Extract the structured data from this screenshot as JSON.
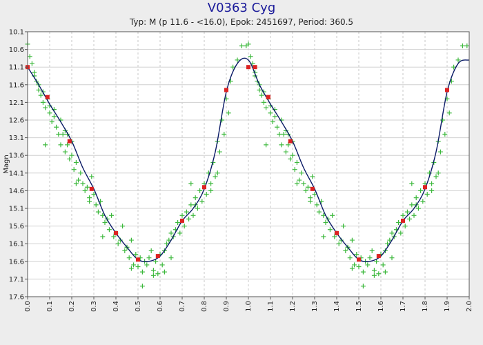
{
  "chart_data": {
    "type": "scatter",
    "title": "V0363 Cyg",
    "subtitle": "Typ: M (p 11.6 - <16.0), Epok: 2451697, Period: 360.5",
    "xlabel": "",
    "ylabel": "Magn",
    "xlim": [
      0.0,
      2.0
    ],
    "ylim": [
      10.1,
      17.6
    ],
    "y_inverted": true,
    "grid": true,
    "x_ticks": [
      "0.0",
      "0.1",
      "0.2",
      "0.3",
      "0.4",
      "0.5",
      "0.6",
      "0.7",
      "0.8",
      "0.9",
      "1.0",
      "1.1",
      "1.2",
      "1.3",
      "1.4",
      "1.5",
      "1.6",
      "1.7",
      "1.8",
      "1.9",
      "2.0"
    ],
    "y_ticks": [
      "10.1",
      "10.6",
      "11.1",
      "11.6",
      "12.1",
      "12.6",
      "13.1",
      "13.6",
      "14.1",
      "14.6",
      "15.1",
      "15.6",
      "16.1",
      "16.6",
      "17.1",
      "17.6"
    ],
    "series": [
      {
        "name": "observations",
        "marker": "plus",
        "color": "#3cb83c",
        "x": [
          0.0,
          0.01,
          0.02,
          0.03,
          0.03,
          0.04,
          0.05,
          0.05,
          0.06,
          0.07,
          0.07,
          0.08,
          0.09,
          0.1,
          0.1,
          0.11,
          0.12,
          0.12,
          0.13,
          0.14,
          0.15,
          0.15,
          0.16,
          0.17,
          0.17,
          0.18,
          0.19,
          0.2,
          0.2,
          0.21,
          0.22,
          0.23,
          0.24,
          0.25,
          0.26,
          0.27,
          0.28,
          0.29,
          0.3,
          0.31,
          0.32,
          0.33,
          0.34,
          0.35,
          0.36,
          0.37,
          0.38,
          0.39,
          0.4,
          0.41,
          0.42,
          0.43,
          0.44,
          0.45,
          0.46,
          0.47,
          0.48,
          0.49,
          0.5,
          0.51,
          0.52,
          0.53,
          0.54,
          0.55,
          0.56,
          0.57,
          0.58,
          0.59,
          0.6,
          0.61,
          0.62,
          0.63,
          0.64,
          0.65,
          0.66,
          0.67,
          0.68,
          0.69,
          0.7,
          0.71,
          0.72,
          0.73,
          0.74,
          0.75,
          0.76,
          0.77,
          0.78,
          0.79,
          0.8,
          0.81,
          0.82,
          0.83,
          0.84,
          0.85,
          0.86,
          0.87,
          0.88,
          0.89,
          0.9,
          0.91,
          0.92,
          0.93,
          0.95,
          0.97,
          0.99,
          0.52,
          0.57,
          0.62,
          0.47,
          0.45,
          0.65,
          0.34,
          0.28,
          0.22,
          0.18,
          0.08,
          0.74,
          0.76,
          0.83,
          0.86
        ],
        "y": [
          10.45,
          10.8,
          11.0,
          11.25,
          11.35,
          11.5,
          11.6,
          11.75,
          11.9,
          11.8,
          12.1,
          12.25,
          12.0,
          12.4,
          12.2,
          12.65,
          12.5,
          12.3,
          12.8,
          13.0,
          12.6,
          13.3,
          13.0,
          13.5,
          12.9,
          13.3,
          13.7,
          13.6,
          13.2,
          14.0,
          13.8,
          14.3,
          14.1,
          14.4,
          14.6,
          14.5,
          14.8,
          14.2,
          14.7,
          15.0,
          15.2,
          14.9,
          15.3,
          15.5,
          15.4,
          15.7,
          15.3,
          15.9,
          15.8,
          16.1,
          16.0,
          15.6,
          16.3,
          16.2,
          16.5,
          16.0,
          16.7,
          16.4,
          16.75,
          16.5,
          16.9,
          16.6,
          16.7,
          16.5,
          16.3,
          16.85,
          16.6,
          16.95,
          16.4,
          16.7,
          16.3,
          16.1,
          16.0,
          15.8,
          15.9,
          15.7,
          15.5,
          15.8,
          15.3,
          15.6,
          15.2,
          15.4,
          15.0,
          15.3,
          14.8,
          15.1,
          14.6,
          14.9,
          14.4,
          14.7,
          14.1,
          14.4,
          13.8,
          14.2,
          13.2,
          13.5,
          12.6,
          13.0,
          12.0,
          12.4,
          11.5,
          11.1,
          10.9,
          10.5,
          10.5,
          17.3,
          17.0,
          16.9,
          16.8,
          16.2,
          16.5,
          15.9,
          14.9,
          14.4,
          13.0,
          13.3,
          14.4,
          15.0,
          14.6,
          14.1
        ]
      },
      {
        "name": "mean curve",
        "marker": "line",
        "color": "#0a1a66",
        "x": [
          0.0,
          0.05,
          0.1,
          0.15,
          0.2,
          0.25,
          0.3,
          0.35,
          0.4,
          0.45,
          0.5,
          0.55,
          0.6,
          0.65,
          0.7,
          0.75,
          0.8,
          0.85,
          0.9,
          0.95,
          1.0
        ],
        "y": [
          11.1,
          11.6,
          12.15,
          12.65,
          13.2,
          13.95,
          14.55,
          15.3,
          15.8,
          16.2,
          16.55,
          16.6,
          16.45,
          16.0,
          15.45,
          15.1,
          14.55,
          13.5,
          11.8,
          11.0,
          10.9
        ]
      },
      {
        "name": "normal points",
        "marker": "square",
        "color": "#dd2222",
        "x": [
          0.0,
          0.09,
          0.19,
          0.29,
          0.4,
          0.5,
          0.59,
          0.7,
          0.8,
          0.9,
          1.03,
          1.09
        ],
        "y": [
          11.1,
          11.95,
          13.2,
          14.55,
          15.8,
          16.55,
          16.45,
          15.45,
          14.5,
          11.75,
          11.1,
          11.95
        ]
      }
    ]
  }
}
